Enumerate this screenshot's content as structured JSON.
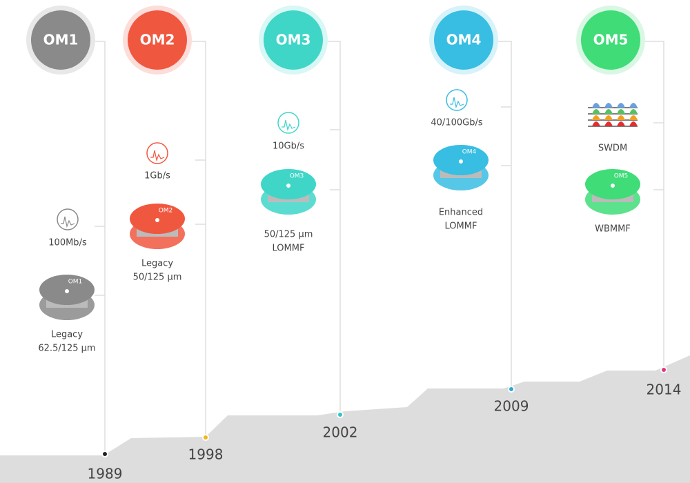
{
  "generations": [
    {
      "badge": "OM1",
      "color": "#8a8a8a",
      "speed": "100Mb/s",
      "spool_label": "OM1",
      "description": [
        "Legacy",
        "62.5/125 µm"
      ],
      "year": "1989",
      "year_color": "#222222"
    },
    {
      "badge": "OM2",
      "color": "#f0573f",
      "speed": "1Gb/s",
      "spool_label": "OM2",
      "description": [
        "Legacy",
        "50/125 µm"
      ],
      "year": "1998",
      "year_color": "#f2b51c"
    },
    {
      "badge": "OM3",
      "color": "#3fd6c8",
      "speed": "10Gb/s",
      "spool_label": "OM3",
      "description": [
        "50/125 µm",
        "LOMMF"
      ],
      "year": "2002",
      "year_color": "#2ac6c9"
    },
    {
      "badge": "OM4",
      "color": "#38bde3",
      "speed": "40/100Gb/s",
      "spool_label": "OM4",
      "description": [
        "Enhanced",
        "LOMMF"
      ],
      "year": "2009",
      "year_color": "#2aa9d8"
    },
    {
      "badge": "OM5",
      "color": "#3fdc78",
      "speed": "SWDM",
      "spool_label": "OM5",
      "description": [
        "WBMMF"
      ],
      "year": "2014",
      "year_color": "#e0367a"
    }
  ]
}
